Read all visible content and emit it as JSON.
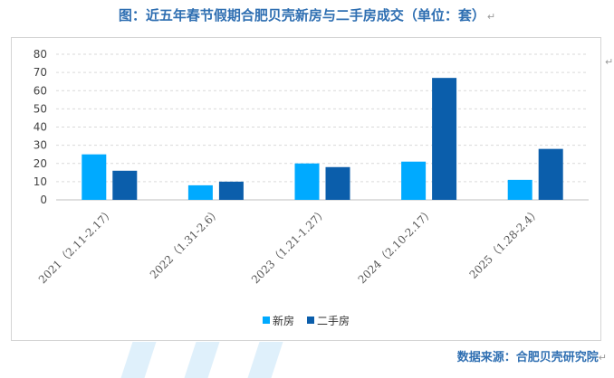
{
  "title": "图：近五年春节假期合肥贝壳新房与二手房成交（单位：套）",
  "title_mark": "↵",
  "side_mark": "↵",
  "source": "数据来源：合肥贝壳研究院",
  "source_mark": "↵",
  "colors": {
    "new": "#00aaff",
    "second": "#0b5eab",
    "grid": "#d9d9d9",
    "title": "#2f6fb2"
  },
  "chart_data": {
    "type": "bar",
    "categories": [
      "2021（2.11-2.17）",
      "2022（1.31-2.6）",
      "2023（1.21-1.27）",
      "2024（2.10-2.17）",
      "2025（1.28-2.4）"
    ],
    "series": [
      {
        "name": "新房",
        "values": [
          25,
          8,
          20,
          21,
          11
        ]
      },
      {
        "name": "二手房",
        "values": [
          16,
          10,
          18,
          67,
          28
        ]
      }
    ],
    "yticks": [
      0,
      10,
      20,
      30,
      40,
      50,
      60,
      70,
      80
    ],
    "ylim": [
      0,
      80
    ],
    "grid": true,
    "legend": "bottom"
  }
}
